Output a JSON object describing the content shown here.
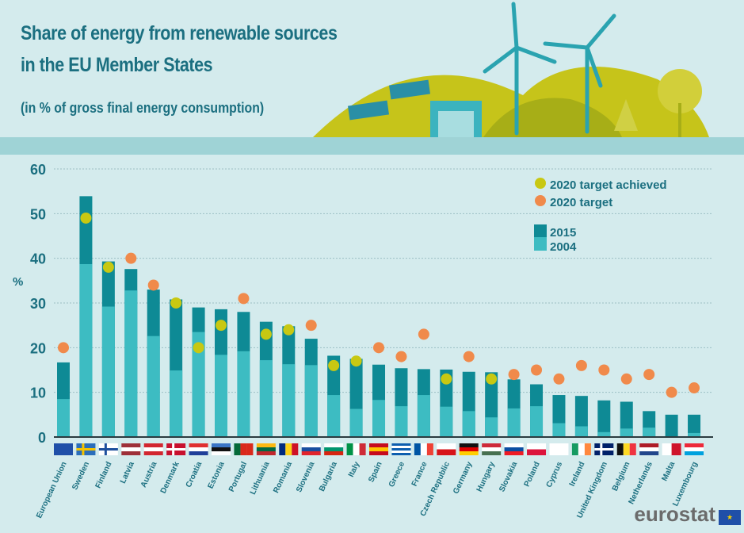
{
  "header": {
    "title_line1": "Share of energy from renewable sources",
    "title_line2": "in the EU Member States",
    "subtitle": "(in % of gross final energy consumption)"
  },
  "colors": {
    "bar_2015": "#0e8a95",
    "bar_2004": "#3dbcc2",
    "achieved": "#c8c812",
    "target": "#f08a4b",
    "text": "#1b6f80",
    "grid": "#9bbfc4"
  },
  "logo": {
    "text": "eurostat"
  },
  "chart_data": {
    "type": "bar",
    "ylabel": "%",
    "ylim": [
      0,
      60
    ],
    "yticks": [
      0,
      10,
      20,
      30,
      40,
      50,
      60
    ],
    "grid": true,
    "legend_position": "top-right",
    "legend": {
      "achieved": "2020 target achieved",
      "target": "2020 target",
      "s2015": "2015",
      "s2004": "2004"
    },
    "categories": [
      "European Union",
      "Sweden",
      "Finland",
      "Latvia",
      "Austria",
      "Denmark",
      "Croatia",
      "Estonia",
      "Portugal",
      "Lithuania",
      "Romania",
      "Slovenia",
      "Bulgaria",
      "Italy",
      "Spain",
      "Greece",
      "France",
      "Czech Republic",
      "Germany",
      "Hungary",
      "Slovakia",
      "Poland",
      "Cyprus",
      "Ireland",
      "United Kingdom",
      "Belgium",
      "Netherlands",
      "Malta",
      "Luxembourg"
    ],
    "series": [
      {
        "name": "2015",
        "values": [
          16.7,
          53.9,
          39.3,
          37.6,
          33.0,
          30.8,
          29.0,
          28.6,
          28.0,
          25.8,
          24.8,
          22.0,
          18.2,
          17.5,
          16.2,
          15.4,
          15.2,
          15.1,
          14.6,
          14.5,
          12.9,
          11.8,
          9.4,
          9.2,
          8.2,
          7.9,
          5.8,
          5.0,
          5.0
        ]
      },
      {
        "name": "2004",
        "values": [
          8.5,
          38.7,
          29.2,
          32.8,
          22.6,
          14.9,
          23.5,
          18.4,
          19.2,
          17.2,
          16.3,
          16.1,
          9.4,
          6.3,
          8.3,
          6.9,
          9.4,
          6.8,
          5.8,
          4.4,
          6.4,
          6.9,
          3.1,
          2.4,
          1.1,
          1.9,
          2.1,
          0.1,
          0.9
        ]
      },
      {
        "name": "2020 target",
        "values": [
          20,
          49,
          38,
          40,
          34,
          30,
          20,
          25,
          31,
          23,
          24,
          25,
          16,
          17,
          20,
          18,
          23,
          13,
          18,
          13,
          14,
          15,
          13,
          16,
          15,
          13,
          14,
          10,
          11
        ]
      }
    ],
    "target_achieved": [
      false,
      true,
      true,
      false,
      false,
      true,
      true,
      true,
      false,
      true,
      true,
      false,
      true,
      true,
      false,
      false,
      false,
      true,
      false,
      true,
      false,
      false,
      false,
      false,
      false,
      false,
      false,
      false,
      false
    ]
  },
  "flags": [
    {
      "o": "eu",
      "c": [
        "#1f4fa8"
      ]
    },
    {
      "o": "x",
      "c": [
        "#2a6ebb",
        "#f5c400"
      ]
    },
    {
      "o": "x",
      "c": [
        "#ffffff",
        "#1d4f9c"
      ]
    },
    {
      "o": "h",
      "c": [
        "#9e3039",
        "#ffffff",
        "#9e3039"
      ]
    },
    {
      "o": "h",
      "c": [
        "#d22630",
        "#ffffff",
        "#d22630"
      ]
    },
    {
      "o": "x",
      "c": [
        "#c8102e",
        "#ffffff"
      ]
    },
    {
      "o": "h",
      "c": [
        "#e03030",
        "#ffffff",
        "#1f3f99"
      ]
    },
    {
      "o": "h",
      "c": [
        "#3a75c4",
        "#111111",
        "#ffffff"
      ]
    },
    {
      "o": "v",
      "c": [
        "#046a38",
        "#da291c",
        "#da291c"
      ]
    },
    {
      "o": "h",
      "c": [
        "#fdb913",
        "#006a44",
        "#c1272d"
      ]
    },
    {
      "o": "v",
      "c": [
        "#002b7f",
        "#fcd116",
        "#ce1126"
      ]
    },
    {
      "o": "h",
      "c": [
        "#ffffff",
        "#1a4fa0",
        "#e0242c"
      ]
    },
    {
      "o": "h",
      "c": [
        "#ffffff",
        "#00966e",
        "#d62612"
      ]
    },
    {
      "o": "v",
      "c": [
        "#009246",
        "#ffffff",
        "#ce2b37"
      ]
    },
    {
      "o": "h",
      "c": [
        "#c60b1e",
        "#ffc400",
        "#c60b1e"
      ]
    },
    {
      "o": "h",
      "c": [
        "#0d5eaf",
        "#ffffff",
        "#0d5eaf",
        "#ffffff",
        "#0d5eaf"
      ]
    },
    {
      "o": "v",
      "c": [
        "#0055a4",
        "#ffffff",
        "#ef4135"
      ]
    },
    {
      "o": "h",
      "c": [
        "#ffffff",
        "#d7141a"
      ]
    },
    {
      "o": "h",
      "c": [
        "#111111",
        "#dd0000",
        "#ffce00"
      ]
    },
    {
      "o": "h",
      "c": [
        "#ce2939",
        "#ffffff",
        "#477050"
      ]
    },
    {
      "o": "h",
      "c": [
        "#ffffff",
        "#0b4ea2",
        "#ee1c25"
      ]
    },
    {
      "o": "h",
      "c": [
        "#ffffff",
        "#dc143c"
      ]
    },
    {
      "o": "h",
      "c": [
        "#ffffff",
        "#ffffff"
      ]
    },
    {
      "o": "v",
      "c": [
        "#169b62",
        "#ffffff",
        "#ff883e"
      ]
    },
    {
      "o": "x",
      "c": [
        "#012169",
        "#ffffff"
      ]
    },
    {
      "o": "v",
      "c": [
        "#111111",
        "#fdda24",
        "#ef3340"
      ]
    },
    {
      "o": "h",
      "c": [
        "#ae1c28",
        "#ffffff",
        "#21468b"
      ]
    },
    {
      "o": "v",
      "c": [
        "#ffffff",
        "#cf142b"
      ]
    },
    {
      "o": "h",
      "c": [
        "#ed2939",
        "#ffffff",
        "#00a1de"
      ]
    }
  ]
}
